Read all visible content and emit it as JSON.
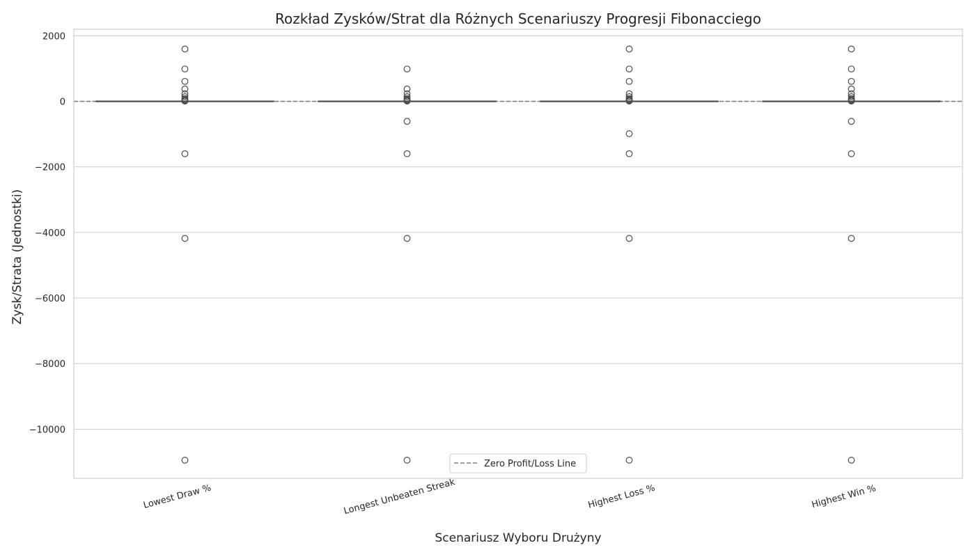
{
  "chart_data": {
    "type": "box",
    "title": "Rozkład Zysków/Strat dla Różnych Scenariuszy Progresji Fibonacciego",
    "xlabel": "Scenariusz Wyboru Drużyny",
    "ylabel": "Zysk/Strata (Jednostki)",
    "ylim": [
      -11500,
      2200
    ],
    "yticks": [
      2000,
      0,
      -2000,
      -4000,
      -6000,
      -8000,
      -10000
    ],
    "ytick_labels": [
      "2000",
      "0",
      "−2000",
      "−4000",
      "−6000",
      "−8000",
      "−10000"
    ],
    "grid": true,
    "categories": [
      "Lowest Draw %",
      "Longest Unbeaten Streak",
      "Highest Loss %",
      "Highest Win %"
    ],
    "boxes": [
      {
        "q1": 0,
        "median": 0,
        "q3": 0,
        "whisker_low": 0,
        "whisker_high": 0
      },
      {
        "q1": 0,
        "median": 0,
        "q3": 0,
        "whisker_low": 0,
        "whisker_high": 0
      },
      {
        "q1": 0,
        "median": 0,
        "q3": 0,
        "whisker_low": 0,
        "whisker_high": 0
      },
      {
        "q1": 0,
        "median": 0,
        "q3": 0,
        "whisker_low": 0,
        "whisker_high": 0
      }
    ],
    "outliers": [
      [
        1597,
        987,
        610,
        377,
        233,
        144,
        89,
        55,
        34,
        21,
        13,
        8,
        -1597,
        -4181,
        -10946
      ],
      [
        987,
        377,
        233,
        144,
        89,
        55,
        34,
        21,
        13,
        8,
        -610,
        -1597,
        -4181,
        -10946
      ],
      [
        1597,
        987,
        610,
        233,
        144,
        89,
        55,
        34,
        21,
        13,
        8,
        -987,
        -1597,
        -4181,
        -10946
      ],
      [
        1597,
        987,
        610,
        377,
        233,
        144,
        89,
        55,
        34,
        21,
        13,
        8,
        -610,
        -1597,
        -4181,
        -10946
      ]
    ],
    "reference_line": {
      "y": 0,
      "style": "dashed",
      "color": "#808080",
      "label": "Zero Profit/Loss Line"
    },
    "legend": {
      "position": "lower-center",
      "entries": [
        "Zero Profit/Loss Line"
      ]
    },
    "colors": {
      "box": "#4c4c4c",
      "grid": "#cccccc",
      "spine": "#cccccc",
      "reference": "#808080"
    }
  }
}
